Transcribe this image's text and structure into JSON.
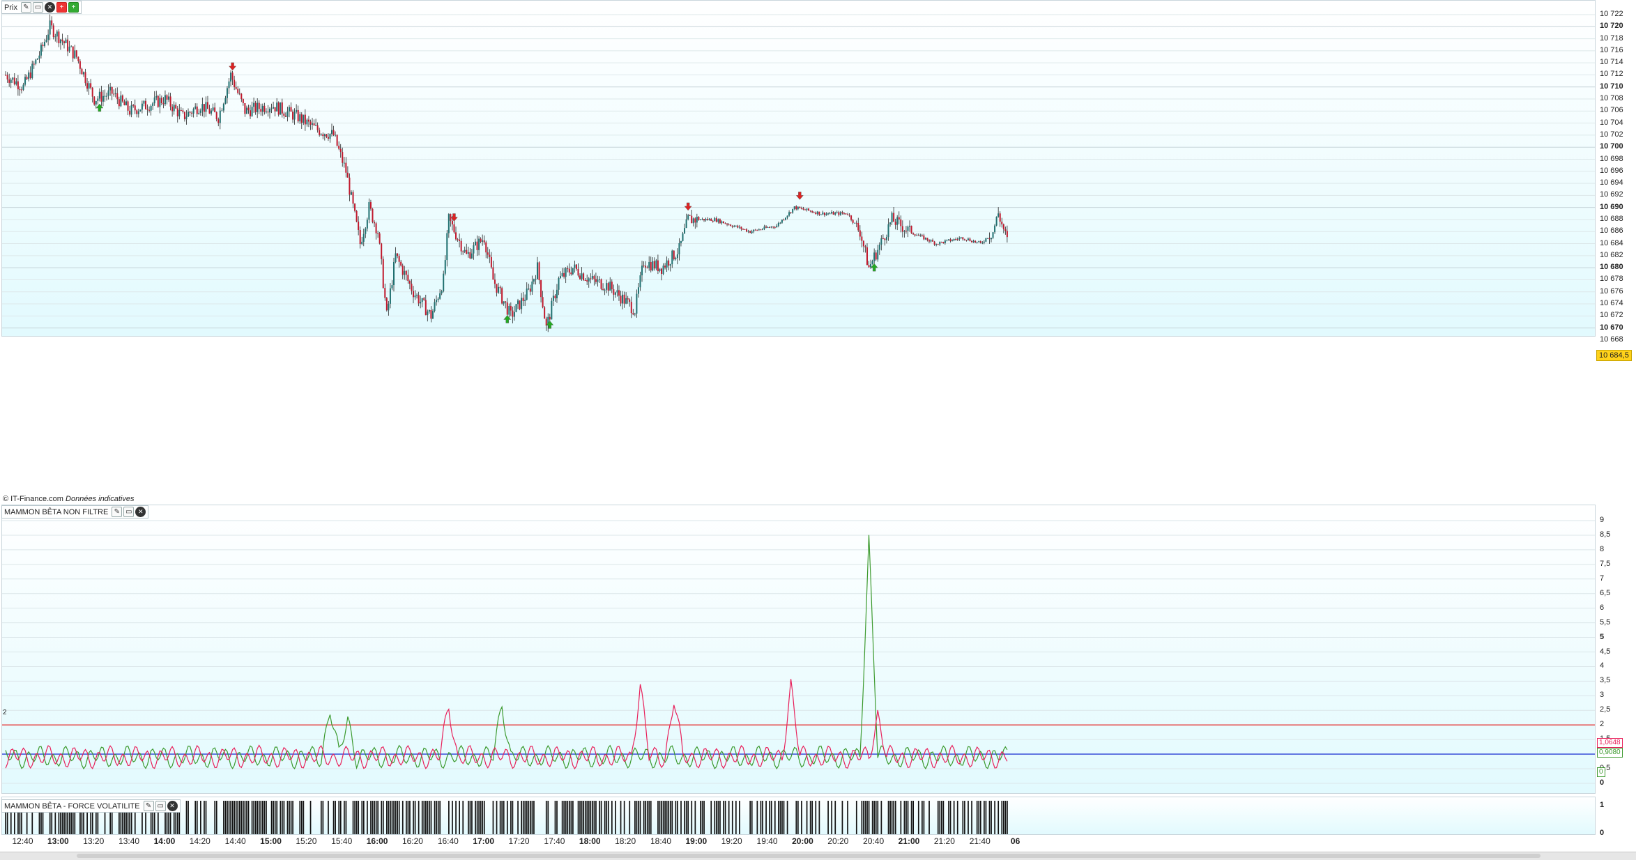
{
  "price_pane": {
    "title": "Prix",
    "credit_source": "© IT-Finance.com",
    "credit_note": "Données indicatives",
    "y_min": 10668,
    "y_max": 10722,
    "ticks": [
      "10 722",
      "10 720",
      "10 718",
      "10 716",
      "10 714",
      "10 712",
      "10 710",
      "10 708",
      "10 706",
      "10 704",
      "10 702",
      "10 700",
      "10 698",
      "10 696",
      "10 694",
      "10 692",
      "10 690",
      "10 688",
      "10 686",
      "10 684",
      "10 682",
      "10 680",
      "10 678",
      "10 676",
      "10 674",
      "10 672",
      "10 670",
      "10 668"
    ],
    "last_price": "10 684,5",
    "last_price_color": "#ffd21a",
    "up_color": "#1f6f6f",
    "down_color": "#c0182c",
    "buy_arrow_color": "#22aa22",
    "sell_arrow_color": "#dd2222"
  },
  "indicator_pane": {
    "title": "MAMMON BÊTA NON FILTRE",
    "level_label": "2",
    "ticks": [
      "9",
      "8,5",
      "8",
      "7,5",
      "7",
      "6,5",
      "6",
      "5,5",
      "5",
      "4,5",
      "4",
      "3,5",
      "3",
      "2,5",
      "2",
      "1,5",
      "1",
      "0,5",
      "0"
    ],
    "green_value": "0,9080",
    "red_value": "1,0648",
    "zero_value": "0",
    "green_color": "#3c9a2e",
    "red_color": "#e8205a",
    "threshold_color": "#e53b3b",
    "baseline_color": "#2a3fd6"
  },
  "volatility_pane": {
    "title": "MAMMON BÊTA - FORCE VOLATILITE",
    "ticks": [
      "1",
      "0"
    ]
  },
  "time_axis": {
    "labels": [
      {
        "t": "12:40",
        "major": false
      },
      {
        "t": "13:00",
        "major": true
      },
      {
        "t": "13:20",
        "major": false
      },
      {
        "t": "13:40",
        "major": false
      },
      {
        "t": "14:00",
        "major": true
      },
      {
        "t": "14:20",
        "major": false
      },
      {
        "t": "14:40",
        "major": false
      },
      {
        "t": "15:00",
        "major": true
      },
      {
        "t": "15:20",
        "major": false
      },
      {
        "t": "15:40",
        "major": false
      },
      {
        "t": "16:00",
        "major": true
      },
      {
        "t": "16:20",
        "major": false
      },
      {
        "t": "16:40",
        "major": false
      },
      {
        "t": "17:00",
        "major": true
      },
      {
        "t": "17:20",
        "major": false
      },
      {
        "t": "17:40",
        "major": false
      },
      {
        "t": "18:00",
        "major": true
      },
      {
        "t": "18:20",
        "major": false
      },
      {
        "t": "18:40",
        "major": false
      },
      {
        "t": "19:00",
        "major": true
      },
      {
        "t": "19:20",
        "major": false
      },
      {
        "t": "19:40",
        "major": false
      },
      {
        "t": "20:00",
        "major": true
      },
      {
        "t": "20:20",
        "major": false
      },
      {
        "t": "20:40",
        "major": false
      },
      {
        "t": "21:00",
        "major": true
      },
      {
        "t": "21:20",
        "major": false
      },
      {
        "t": "21:40",
        "major": false
      },
      {
        "t": "06",
        "major": true
      }
    ]
  },
  "chart_data": {
    "type": "line",
    "title": "",
    "x_range": [
      "12:30",
      "22:00"
    ],
    "price_path": [
      {
        "x": "12:30",
        "y": 10712
      },
      {
        "x": "12:40",
        "y": 10710
      },
      {
        "x": "12:50",
        "y": 10716
      },
      {
        "x": "12:55",
        "y": 10720
      },
      {
        "x": "13:10",
        "y": 10715
      },
      {
        "x": "13:20",
        "y": 10708
      },
      {
        "x": "13:30",
        "y": 10709
      },
      {
        "x": "13:40",
        "y": 10706
      },
      {
        "x": "14:00",
        "y": 10708
      },
      {
        "x": "14:10",
        "y": 10705
      },
      {
        "x": "14:20",
        "y": 10707
      },
      {
        "x": "14:30",
        "y": 10705
      },
      {
        "x": "14:37",
        "y": 10712
      },
      {
        "x": "14:45",
        "y": 10706
      },
      {
        "x": "15:00",
        "y": 10707
      },
      {
        "x": "15:15",
        "y": 10705
      },
      {
        "x": "15:25",
        "y": 10703
      },
      {
        "x": "15:35",
        "y": 10702
      },
      {
        "x": "15:42",
        "y": 10696
      },
      {
        "x": "15:50",
        "y": 10684
      },
      {
        "x": "15:55",
        "y": 10690
      },
      {
        "x": "16:00",
        "y": 10686
      },
      {
        "x": "16:05",
        "y": 10672
      },
      {
        "x": "16:10",
        "y": 10682
      },
      {
        "x": "16:20",
        "y": 10676
      },
      {
        "x": "16:30",
        "y": 10672
      },
      {
        "x": "16:37",
        "y": 10678
      },
      {
        "x": "16:40",
        "y": 10688
      },
      {
        "x": "16:50",
        "y": 10682
      },
      {
        "x": "17:00",
        "y": 10685
      },
      {
        "x": "17:05",
        "y": 10678
      },
      {
        "x": "17:15",
        "y": 10672
      },
      {
        "x": "17:25",
        "y": 10676
      },
      {
        "x": "17:30",
        "y": 10680
      },
      {
        "x": "17:35",
        "y": 10670
      },
      {
        "x": "17:42",
        "y": 10678
      },
      {
        "x": "17:50",
        "y": 10680
      },
      {
        "x": "18:00",
        "y": 10678
      },
      {
        "x": "18:10",
        "y": 10677
      },
      {
        "x": "18:25",
        "y": 10673
      },
      {
        "x": "18:30",
        "y": 10681
      },
      {
        "x": "18:40",
        "y": 10680
      },
      {
        "x": "18:50",
        "y": 10683
      },
      {
        "x": "18:55",
        "y": 10688
      },
      {
        "x": "19:10",
        "y": 10688
      },
      {
        "x": "19:30",
        "y": 10686
      },
      {
        "x": "19:45",
        "y": 10687
      },
      {
        "x": "19:55",
        "y": 10690
      },
      {
        "x": "20:10",
        "y": 10689
      },
      {
        "x": "20:25",
        "y": 10689
      },
      {
        "x": "20:32",
        "y": 10686
      },
      {
        "x": "20:37",
        "y": 10680
      },
      {
        "x": "20:42",
        "y": 10683
      },
      {
        "x": "20:50",
        "y": 10688
      },
      {
        "x": "21:00",
        "y": 10686
      },
      {
        "x": "21:15",
        "y": 10684
      },
      {
        "x": "21:30",
        "y": 10685
      },
      {
        "x": "21:40",
        "y": 10684
      },
      {
        "x": "21:47",
        "y": 10686
      },
      {
        "x": "21:50",
        "y": 10689
      },
      {
        "x": "21:55",
        "y": 10684.5
      }
    ],
    "sell_signals": [
      "14:38",
      "16:43",
      "18:55",
      "19:58"
    ],
    "buy_signals": [
      "13:23",
      "17:13",
      "17:37",
      "20:40"
    ],
    "indicator_spikes_green": [
      {
        "x": "15:33",
        "y": 2.7
      },
      {
        "x": "15:43",
        "y": 2.3
      },
      {
        "x": "17:10",
        "y": 2.9
      },
      {
        "x": "20:37",
        "y": 8.5
      }
    ],
    "indicator_spikes_red": [
      {
        "x": "16:40",
        "y": 2.8
      },
      {
        "x": "18:28",
        "y": 3.5
      },
      {
        "x": "18:47",
        "y": 3.0
      },
      {
        "x": "19:53",
        "y": 3.5
      },
      {
        "x": "20:42",
        "y": 2.5
      }
    ],
    "indicator_threshold": 2,
    "indicator_baseline": 1,
    "indicator_y_range": [
      0,
      9
    ]
  }
}
